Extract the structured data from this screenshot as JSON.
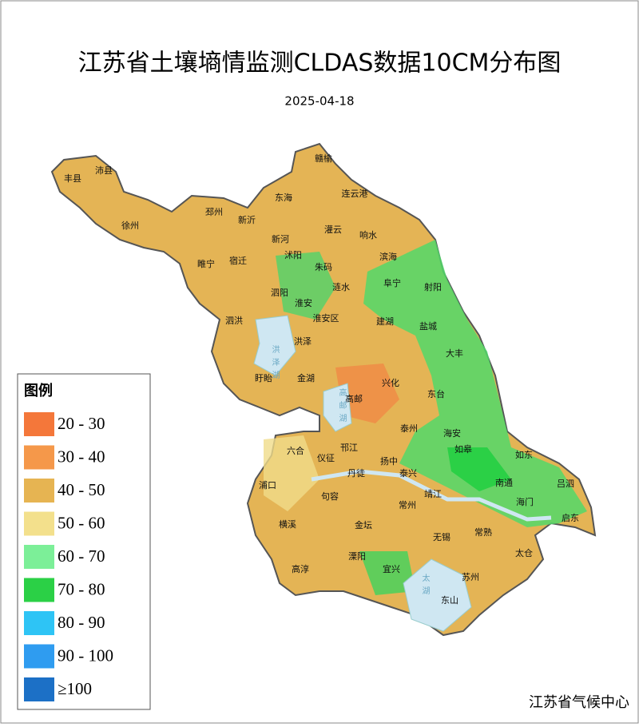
{
  "title": "江苏省土壤墒情监测CLDAS数据10CM分布图",
  "date": "2025-04-18",
  "legend": {
    "title": "图例",
    "items": [
      {
        "label": "20 - 30",
        "color": "#f4773a"
      },
      {
        "label": "30 - 40",
        "color": "#f5984a"
      },
      {
        "label": "40 - 50",
        "color": "#e6b452"
      },
      {
        "label": "50 - 60",
        "color": "#f3e08c"
      },
      {
        "label": "60 - 70",
        "color": "#7cef98"
      },
      {
        "label": "70 - 80",
        "color": "#2bd046"
      },
      {
        "label": "80 - 90",
        "color": "#2ec4f5"
      },
      {
        "label": "90 - 100",
        "color": "#2f9cf0"
      },
      {
        "label": "≥100",
        "color": "#1c70c6"
      }
    ]
  },
  "places": [
    "丰县",
    "沛县",
    "徐州",
    "邳州",
    "新沂",
    "东海",
    "赣榆",
    "连云港",
    "灌云",
    "响水",
    "新河",
    "睢宁",
    "宿迁",
    "沭阳",
    "朱码",
    "滨海",
    "涟水",
    "阜宁",
    "射阳",
    "泗阳",
    "淮安",
    "淮安区",
    "建湖",
    "盐城",
    "泗洪",
    "洪泽",
    "大丰",
    "盱眙",
    "金湖",
    "兴化",
    "高邮",
    "东台",
    "六合",
    "邗江",
    "泰州",
    "海安",
    "仪征",
    "扬中",
    "如皋",
    "如东",
    "丹徒",
    "泰兴",
    "浦口",
    "句容",
    "常州",
    "靖江",
    "南通",
    "吕泗",
    "海门",
    "启东",
    "横溪",
    "金坛",
    "无锡",
    "常熟",
    "太仓",
    "高淳",
    "溧阳",
    "宜兴",
    "苏州",
    "东山"
  ],
  "lakes": [
    "洪泽湖",
    "高邮湖",
    "太湖"
  ],
  "footer": "江苏省气候中心"
}
